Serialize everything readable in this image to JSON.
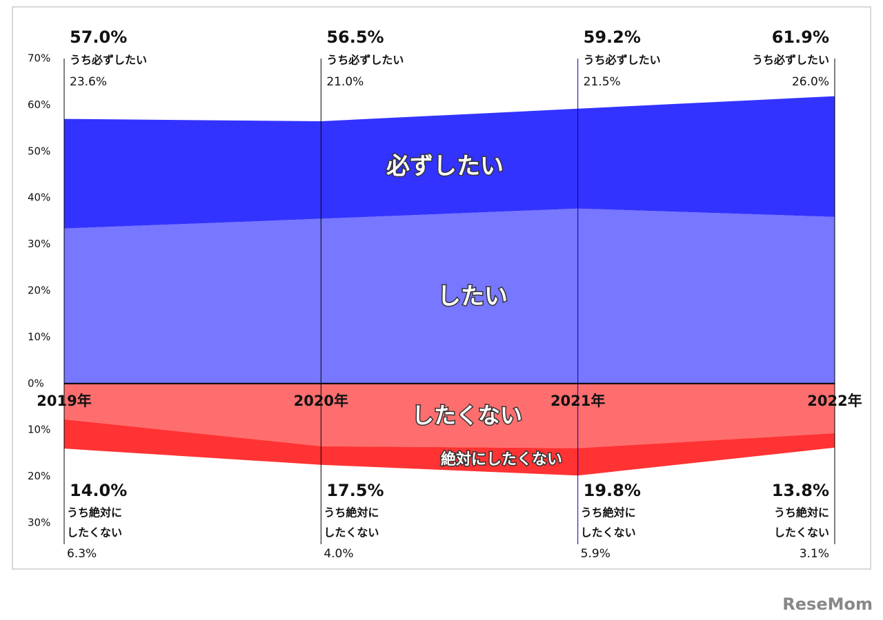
{
  "chart_data": {
    "type": "diverging_area",
    "categories": [
      "2019年",
      "2020年",
      "2021年",
      "2022年"
    ],
    "series": [
      {
        "name": "したい",
        "color": "#7777ff",
        "values": [
          33.4,
          35.5,
          37.7,
          35.9
        ]
      },
      {
        "name": "必ずしたい",
        "color": "#3333ff",
        "values": [
          23.6,
          21.0,
          21.5,
          26.0
        ],
        "value_labels": [
          "23.6%",
          "21.0%",
          "21.5%",
          "26.0%"
        ]
      },
      {
        "name": "したくない",
        "color": "#ff6e6e",
        "values": [
          -7.7,
          -13.5,
          -13.9,
          -10.7
        ]
      },
      {
        "name": "絶対にしたくない",
        "color": "#ff3333",
        "values": [
          -6.3,
          -4.0,
          -5.9,
          -3.1
        ],
        "value_labels": [
          "6.3%",
          "4.0%",
          "5.9%",
          "3.1%"
        ]
      }
    ],
    "positive_total_labels": [
      "57.0%",
      "56.5%",
      "59.2%",
      "61.9%"
    ],
    "positive_sub_label": "うち必ずしたい",
    "negative_total_labels": [
      "14.0%",
      "17.5%",
      "19.8%",
      "13.8%"
    ],
    "negative_sub_label": [
      "うち絶対に",
      "したくない"
    ],
    "ylim": [
      -30,
      70
    ],
    "yticks": [
      {
        "value": 70,
        "label": "70%"
      },
      {
        "value": 60,
        "label": "60%"
      },
      {
        "value": 50,
        "label": "50%"
      },
      {
        "value": 40,
        "label": "40%"
      },
      {
        "value": 30,
        "label": "30%"
      },
      {
        "value": 20,
        "label": "20%"
      },
      {
        "value": 10,
        "label": "10%"
      },
      {
        "value": 0,
        "label": "0%"
      },
      {
        "value": -10,
        "label": "10%"
      },
      {
        "value": -20,
        "label": "20%"
      },
      {
        "value": -30,
        "label": "30%"
      }
    ],
    "watermark": "ReseMom"
  }
}
